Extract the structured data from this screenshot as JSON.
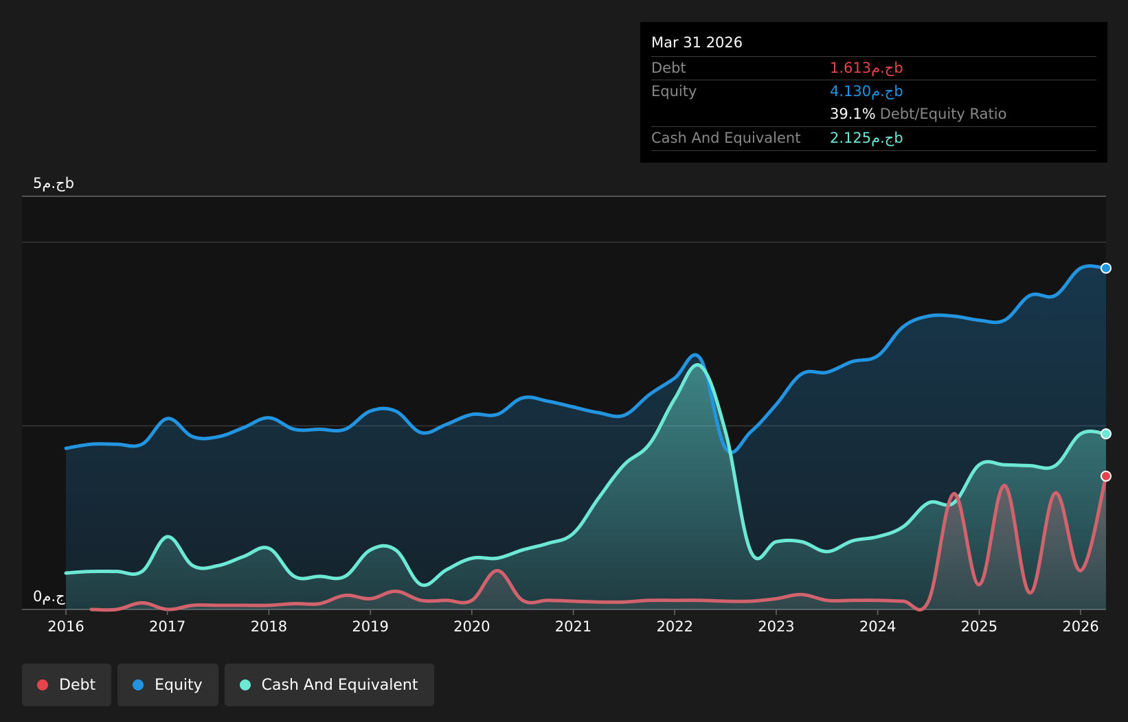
{
  "tooltip": {
    "date": "Mar 31 2026",
    "debt_label": "Debt",
    "debt_value": "1.613ج.مb",
    "equity_label": "Equity",
    "equity_value": "4.130ج.مb",
    "ratio_value": "39.1%",
    "ratio_label": "Debt/Equity Ratio",
    "cash_label": "Cash And Equivalent",
    "cash_value": "2.125ج.مb"
  },
  "legend": {
    "debt": "Debt",
    "equity": "Equity",
    "cash": "Cash And Equivalent"
  },
  "colors": {
    "debt": "#e5444d",
    "debt_line": "#d2626c",
    "equity": "#2394df",
    "cash": "#6ce8d5",
    "background": "#1b1b1b",
    "plot_background": "#131313"
  },
  "chart_data": {
    "type": "area",
    "y_tick_labels": [
      "0ج.م",
      "5ج.مb"
    ],
    "x_tick_labels": [
      "2016",
      "2017",
      "2018",
      "2019",
      "2020",
      "2021",
      "2022",
      "2023",
      "2024",
      "2025",
      "2026"
    ],
    "ylim": [
      0,
      5
    ],
    "xlim": [
      2016,
      2026.25
    ],
    "grid": true,
    "series": [
      {
        "name": "Equity",
        "points": [
          [
            2016.0,
            1.95
          ],
          [
            2016.25,
            2.0
          ],
          [
            2016.5,
            2.0
          ],
          [
            2016.75,
            2.0
          ],
          [
            2017.0,
            2.31
          ],
          [
            2017.25,
            2.09
          ],
          [
            2017.5,
            2.09
          ],
          [
            2017.75,
            2.2
          ],
          [
            2018.0,
            2.32
          ],
          [
            2018.25,
            2.18
          ],
          [
            2018.5,
            2.18
          ],
          [
            2018.75,
            2.18
          ],
          [
            2019.0,
            2.4
          ],
          [
            2019.25,
            2.4
          ],
          [
            2019.5,
            2.14
          ],
          [
            2019.75,
            2.24
          ],
          [
            2020.0,
            2.36
          ],
          [
            2020.25,
            2.36
          ],
          [
            2020.5,
            2.56
          ],
          [
            2020.75,
            2.52
          ],
          [
            2021.0,
            2.45
          ],
          [
            2021.25,
            2.38
          ],
          [
            2021.5,
            2.35
          ],
          [
            2021.75,
            2.6
          ],
          [
            2022.0,
            2.8
          ],
          [
            2022.25,
            3.04
          ],
          [
            2022.5,
            1.95
          ],
          [
            2022.75,
            2.15
          ],
          [
            2023.0,
            2.48
          ],
          [
            2023.25,
            2.85
          ],
          [
            2023.5,
            2.87
          ],
          [
            2023.75,
            3.0
          ],
          [
            2024.0,
            3.07
          ],
          [
            2024.25,
            3.42
          ],
          [
            2024.5,
            3.55
          ],
          [
            2024.75,
            3.55
          ],
          [
            2025.0,
            3.5
          ],
          [
            2025.25,
            3.5
          ],
          [
            2025.5,
            3.8
          ],
          [
            2025.75,
            3.8
          ],
          [
            2026.0,
            4.13
          ],
          [
            2026.25,
            4.13
          ]
        ]
      },
      {
        "name": "Cash And Equivalent",
        "points": [
          [
            2016.0,
            0.44
          ],
          [
            2016.25,
            0.46
          ],
          [
            2016.5,
            0.46
          ],
          [
            2016.75,
            0.46
          ],
          [
            2017.0,
            0.88
          ],
          [
            2017.25,
            0.53
          ],
          [
            2017.5,
            0.53
          ],
          [
            2017.75,
            0.64
          ],
          [
            2018.0,
            0.74
          ],
          [
            2018.25,
            0.4
          ],
          [
            2018.5,
            0.4
          ],
          [
            2018.75,
            0.4
          ],
          [
            2019.0,
            0.72
          ],
          [
            2019.25,
            0.72
          ],
          [
            2019.5,
            0.3
          ],
          [
            2019.75,
            0.48
          ],
          [
            2020.0,
            0.62
          ],
          [
            2020.25,
            0.62
          ],
          [
            2020.5,
            0.72
          ],
          [
            2020.75,
            0.8
          ],
          [
            2021.0,
            0.92
          ],
          [
            2021.25,
            1.35
          ],
          [
            2021.5,
            1.75
          ],
          [
            2021.75,
            2.0
          ],
          [
            2022.0,
            2.55
          ],
          [
            2022.25,
            2.95
          ],
          [
            2022.5,
            2.15
          ],
          [
            2022.75,
            0.7
          ],
          [
            2023.0,
            0.82
          ],
          [
            2023.25,
            0.82
          ],
          [
            2023.5,
            0.7
          ],
          [
            2023.75,
            0.83
          ],
          [
            2024.0,
            0.88
          ],
          [
            2024.25,
            1.0
          ],
          [
            2024.5,
            1.29
          ],
          [
            2024.75,
            1.29
          ],
          [
            2025.0,
            1.75
          ],
          [
            2025.25,
            1.75
          ],
          [
            2025.5,
            1.74
          ],
          [
            2025.75,
            1.74
          ],
          [
            2026.0,
            2.125
          ],
          [
            2026.25,
            2.125
          ]
        ]
      },
      {
        "name": "Debt",
        "points": [
          [
            2016.25,
            0.0
          ],
          [
            2016.5,
            0.0
          ],
          [
            2016.75,
            0.08
          ],
          [
            2017.0,
            0.0
          ],
          [
            2017.25,
            0.05
          ],
          [
            2017.5,
            0.05
          ],
          [
            2017.75,
            0.05
          ],
          [
            2018.0,
            0.05
          ],
          [
            2018.25,
            0.07
          ],
          [
            2018.5,
            0.07
          ],
          [
            2018.75,
            0.17
          ],
          [
            2019.0,
            0.13
          ],
          [
            2019.25,
            0.22
          ],
          [
            2019.5,
            0.11
          ],
          [
            2019.75,
            0.11
          ],
          [
            2020.0,
            0.11
          ],
          [
            2020.25,
            0.47
          ],
          [
            2020.5,
            0.11
          ],
          [
            2020.75,
            0.11
          ],
          [
            2021.0,
            0.1
          ],
          [
            2021.25,
            0.09
          ],
          [
            2021.5,
            0.09
          ],
          [
            2021.75,
            0.11
          ],
          [
            2022.0,
            0.11
          ],
          [
            2022.25,
            0.11
          ],
          [
            2022.5,
            0.1
          ],
          [
            2022.75,
            0.1
          ],
          [
            2023.0,
            0.13
          ],
          [
            2023.25,
            0.18
          ],
          [
            2023.5,
            0.11
          ],
          [
            2023.75,
            0.11
          ],
          [
            2024.0,
            0.11
          ],
          [
            2024.25,
            0.1
          ],
          [
            2024.5,
            0.1
          ],
          [
            2024.75,
            1.4
          ],
          [
            2025.0,
            0.3
          ],
          [
            2025.25,
            1.5
          ],
          [
            2025.5,
            0.2
          ],
          [
            2025.75,
            1.41
          ],
          [
            2026.0,
            0.47
          ],
          [
            2026.25,
            1.613
          ]
        ]
      }
    ]
  }
}
